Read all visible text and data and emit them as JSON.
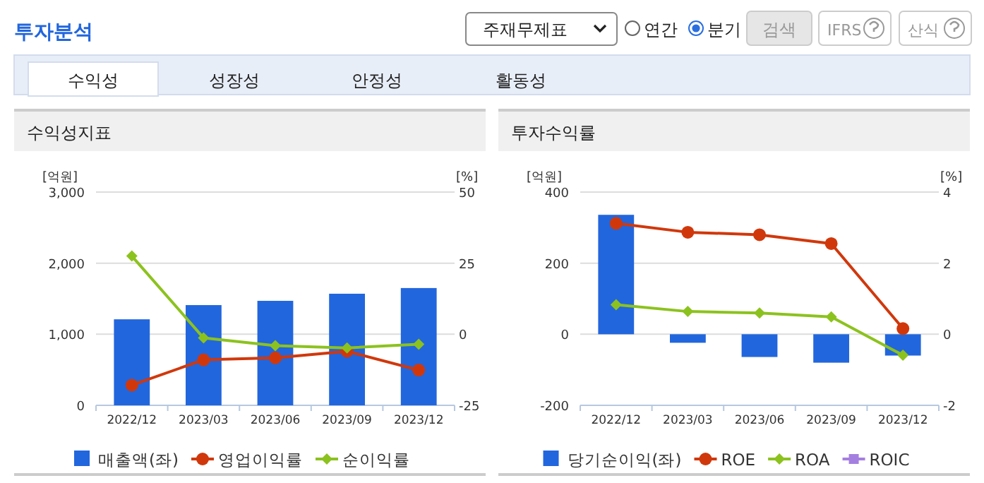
{
  "chart_data": [
    {
      "type": "bar",
      "title": "수익성지표",
      "ylabel": "[억원]",
      "y2label": "[%]",
      "categories": [
        "2022/12",
        "2023/03",
        "2023/06",
        "2023/09",
        "2023/12"
      ],
      "ylim": [
        0,
        3000
      ],
      "yticks": [
        0,
        {
          "value": 1000,
          "label": "1,000"
        },
        {
          "value": 2000,
          "label": "2,000"
        },
        {
          "value": 3000,
          "label": "3,000"
        }
      ],
      "y2lim": [
        -25,
        50
      ],
      "y2ticks": [
        -25,
        0,
        25,
        50
      ],
      "grid": "y",
      "legend": "bottom",
      "annotations": [
        "투자분석",
        "주재무제표",
        "연간",
        "분기",
        "검색",
        "IFRS",
        "산식",
        "수익성",
        "성장성",
        "안정성",
        "활동성"
      ],
      "series": [
        {
          "name": "매출액(좌)",
          "color": "#2266dd",
          "values": [
            1210,
            1410,
            1470,
            1570,
            1650
          ]
        },
        {
          "name": "영업이익률",
          "type": "line",
          "axis": "y2",
          "marker": "circle",
          "color": "#d0380c",
          "values": [
            -17.9,
            -9.0,
            -8.3,
            -6.0,
            -12.6
          ]
        },
        {
          "name": "순이익률",
          "type": "line",
          "axis": "y2",
          "marker": "diamond",
          "color": "#8cc21e",
          "values": [
            27.5,
            -1.3,
            -4.0,
            -4.8,
            -3.5
          ]
        }
      ]
    },
    {
      "type": "bar",
      "title": "투자수익률",
      "ylabel": "[억원]",
      "y2label": "[%]",
      "categories": [
        "2022/12",
        "2023/03",
        "2023/06",
        "2023/09",
        "2023/12"
      ],
      "ylim": [
        -200,
        400
      ],
      "yticks": [
        -200,
        0,
        200,
        400
      ],
      "y2lim": [
        -2,
        4
      ],
      "y2ticks": [
        -2,
        0,
        2,
        4
      ],
      "grid": "y",
      "legend": "bottom",
      "series": [
        {
          "name": "당기순이익(좌)",
          "color": "#2266dd",
          "values": [
            336,
            -24,
            -64,
            -80,
            -60
          ]
        },
        {
          "name": "ROE",
          "type": "line",
          "axis": "y2",
          "marker": "circle",
          "color": "#d0380c",
          "values": [
            3.12,
            2.87,
            2.8,
            2.55,
            0.16
          ]
        },
        {
          "name": "ROA",
          "type": "line",
          "axis": "y2",
          "marker": "diamond",
          "color": "#8cc21e",
          "values": [
            0.83,
            0.64,
            0.6,
            0.49,
            -0.59
          ]
        },
        {
          "name": "ROIC",
          "type": "line",
          "axis": "y2",
          "marker": "square",
          "color": "#a57fe0",
          "values": [
            null,
            null,
            null,
            null,
            null
          ]
        }
      ]
    }
  ]
}
